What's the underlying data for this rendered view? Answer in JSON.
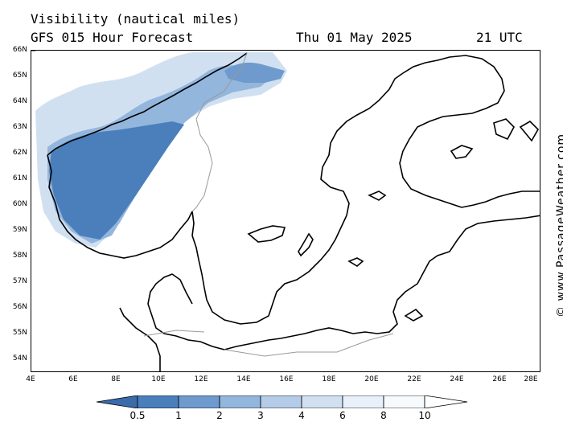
{
  "header": {
    "title": "Visibility (nautical miles)",
    "subtitle": "GFS 015 Hour Forecast",
    "date": "Thu 01 May 2025",
    "time": "21 UTC"
  },
  "credit": "© www.PassageWeather.com",
  "axes": {
    "lat_labels": [
      "66N",
      "65N",
      "64N",
      "63N",
      "62N",
      "61N",
      "60N",
      "59N",
      "58N",
      "57N",
      "56N",
      "55N",
      "54N"
    ],
    "lon_labels": [
      "4E",
      "6E",
      "8E",
      "10E",
      "12E",
      "14E",
      "16E",
      "18E",
      "20E",
      "22E",
      "24E",
      "26E",
      "28E"
    ]
  },
  "legend": {
    "labels": [
      "0.5",
      "1",
      "2",
      "3",
      "4",
      "6",
      "8",
      "10"
    ],
    "colors": [
      "#3a6bab",
      "#4a7fbc",
      "#6e9acd",
      "#93b6dc",
      "#b5cce8",
      "#d1e0f1",
      "#e8f0f9",
      "#ffffff"
    ]
  },
  "colors": {
    "low_vis": "#3a6bab",
    "mid_vis": "#93b6dc",
    "light_vis": "#d1e0f1",
    "coast": "#000000",
    "border": "#999999"
  }
}
